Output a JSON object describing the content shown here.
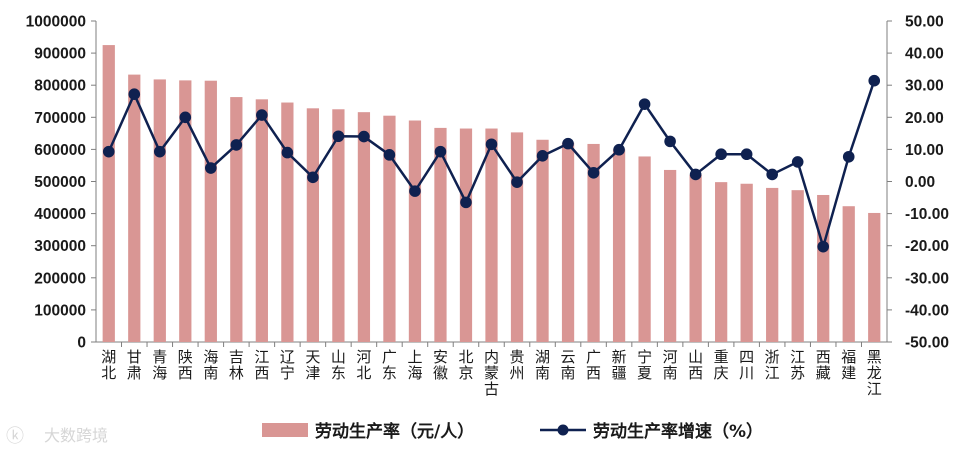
{
  "chart_data": {
    "type": "bar+line",
    "categories": [
      "湖北",
      "甘肃",
      "青海",
      "陕西",
      "海南",
      "吉林",
      "江西",
      "辽宁",
      "天津",
      "山东",
      "河北",
      "广东",
      "上海",
      "安徽",
      "北京",
      "内蒙古",
      "贵州",
      "湖南",
      "云南",
      "广西",
      "新疆",
      "宁夏",
      "河南",
      "山西",
      "重庆",
      "四川",
      "浙江",
      "江苏",
      "西藏",
      "福建",
      "黑龙江"
    ],
    "series": [
      {
        "name": "劳动生产率（元/人）",
        "type": "bar",
        "axis": "left",
        "color": "#d99694",
        "values": [
          925000,
          833000,
          818000,
          815000,
          814000,
          763000,
          756000,
          746000,
          728000,
          725000,
          716000,
          705000,
          690000,
          667000,
          665000,
          665000,
          653000,
          630000,
          621000,
          617000,
          600000,
          578000,
          536000,
          521000,
          498000,
          493000,
          480000,
          473000,
          458000,
          423000,
          402000
        ]
      },
      {
        "name": "劳动生产率增速（%）",
        "type": "line",
        "axis": "right",
        "color": "#0f2150",
        "values": [
          9.3,
          27.2,
          9.3,
          20.0,
          4.2,
          11.4,
          20.7,
          9.0,
          1.3,
          14.1,
          14.0,
          8.3,
          -3.0,
          9.3,
          -6.5,
          11.6,
          -0.2,
          8.0,
          11.8,
          2.7,
          9.9,
          24.1,
          12.5,
          2.2,
          8.5,
          8.5,
          2.2,
          6.1,
          -20.3,
          7.7,
          31.4
        ]
      }
    ],
    "y_left": {
      "min": 0,
      "max": 1000000,
      "step": 100000,
      "tick_labels": [
        "0",
        "100000",
        "200000",
        "300000",
        "400000",
        "500000",
        "600000",
        "700000",
        "800000",
        "900000",
        "1000000"
      ]
    },
    "y_right": {
      "min": -50,
      "max": 50,
      "step": 10,
      "tick_labels": [
        "-50.00",
        "-40.00",
        "-30.00",
        "-20.00",
        "-10.00",
        "0.00",
        "10.00",
        "20.00",
        "30.00",
        "40.00",
        "50.00"
      ]
    },
    "legend_position": "bottom",
    "grid": false
  },
  "legend": {
    "bar_label": "劳动生产率（元/人）",
    "line_label": "劳动生产率增速（%）"
  },
  "watermark": {
    "text": "大数跨境"
  }
}
